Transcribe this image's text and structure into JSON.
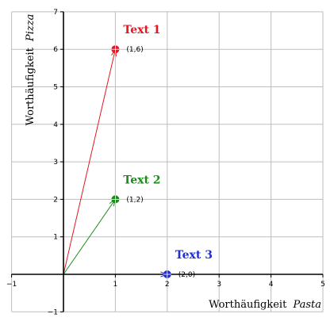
{
  "chart_data": {
    "type": "scatter",
    "title": "",
    "xlabel_text": "Worthäufigkeit",
    "xlabel_word": "Pasta",
    "ylabel_text": "Worthäufigkeit",
    "ylabel_word": "Pizza",
    "xlim": [
      -1,
      5
    ],
    "ylim": [
      -1,
      7
    ],
    "x_ticks": [
      -1,
      1,
      2,
      3,
      4,
      5
    ],
    "y_ticks": [
      -1,
      1,
      2,
      3,
      4,
      5,
      6,
      7
    ],
    "grid": true,
    "series": [
      {
        "name": "Text  1",
        "x": 1,
        "y": 6,
        "point_label": "(1,6)",
        "color": "#e8141f"
      },
      {
        "name": "Text 2",
        "x": 1,
        "y": 2,
        "point_label": "(1,2)",
        "color": "#1e8a1e"
      },
      {
        "name": "Text 3",
        "x": 2,
        "y": 0,
        "point_label": "(2,0)",
        "color": "#1f2fd1"
      }
    ]
  }
}
